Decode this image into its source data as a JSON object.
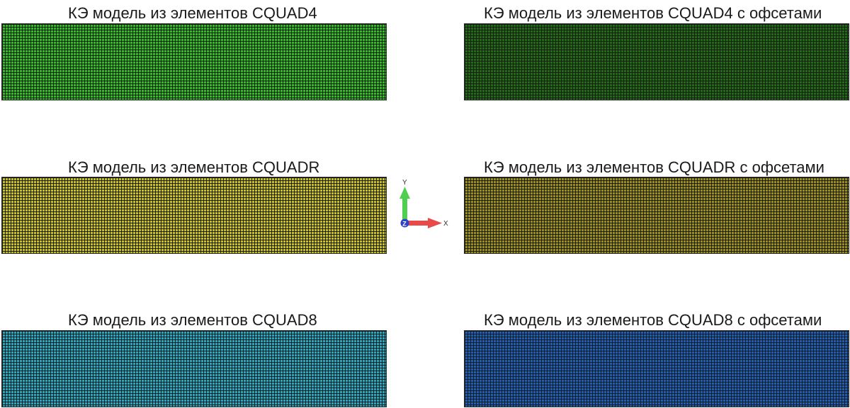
{
  "panels": [
    {
      "title": "КЭ модель из элементов CQUAD4",
      "color": "#2fbf1f"
    },
    {
      "title": "КЭ модель из элементов CQUAD4 с офсетами",
      "color": "#1e6b12"
    },
    {
      "title": "КЭ модель из элементов CQUADR",
      "color": "#c9c21a"
    },
    {
      "title": "КЭ модель из элементов CQUADR с офсетами",
      "color": "#9a8f12"
    },
    {
      "title": "КЭ модель из элементов CQUAD8",
      "color": "#22a9c4"
    },
    {
      "title": "КЭ модель из элементов CQUAD8 с офсетами",
      "color": "#1d5fb8"
    }
  ],
  "mesh_line_color": "#1b1b1b",
  "axis": {
    "x_label": "X",
    "y_label": "Y",
    "z_label": "Z",
    "x_color": "#e84a4a",
    "y_color": "#4fcf4f",
    "z_color": "#2a43c8"
  }
}
